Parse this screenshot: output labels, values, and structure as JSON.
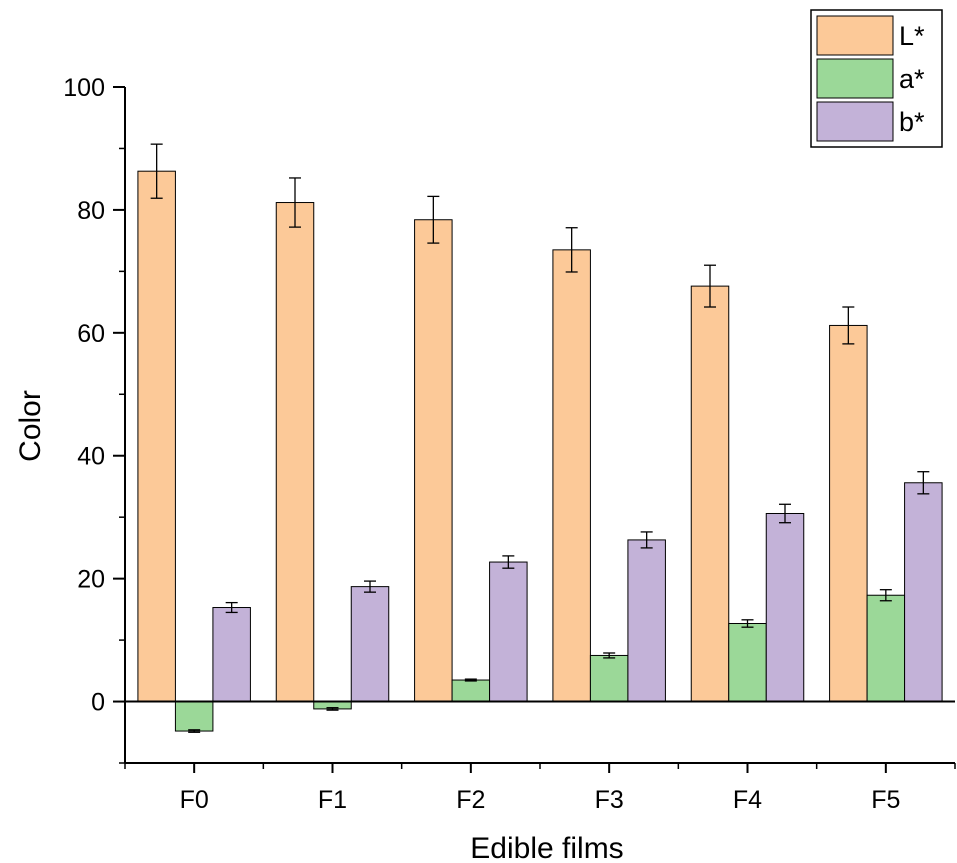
{
  "chart_data": {
    "type": "bar",
    "title": "",
    "xlabel": "Edible films",
    "ylabel": "Color",
    "categories": [
      "F0",
      "F1",
      "F2",
      "F3",
      "F4",
      "F5"
    ],
    "ylim": [
      -10,
      100
    ],
    "yticks": [
      0,
      20,
      40,
      60,
      80,
      100
    ],
    "legend_position": "top-right",
    "series": [
      {
        "name": "L*",
        "color": "#FCC998",
        "values": [
          86.3,
          81.2,
          78.4,
          73.5,
          67.6,
          61.2
        ],
        "errors": [
          4.4,
          4.0,
          3.8,
          3.6,
          3.4,
          3.0
        ]
      },
      {
        "name": "a*",
        "color": "#9BD898",
        "values": [
          -4.8,
          -1.2,
          3.5,
          7.5,
          12.7,
          17.3
        ],
        "errors": [
          0.2,
          0.2,
          0.15,
          0.4,
          0.6,
          0.9
        ]
      },
      {
        "name": "b*",
        "color": "#C3B2D8",
        "values": [
          15.3,
          18.7,
          22.7,
          26.3,
          30.6,
          35.6
        ],
        "errors": [
          0.8,
          0.9,
          1.0,
          1.3,
          1.5,
          1.8
        ]
      }
    ]
  }
}
